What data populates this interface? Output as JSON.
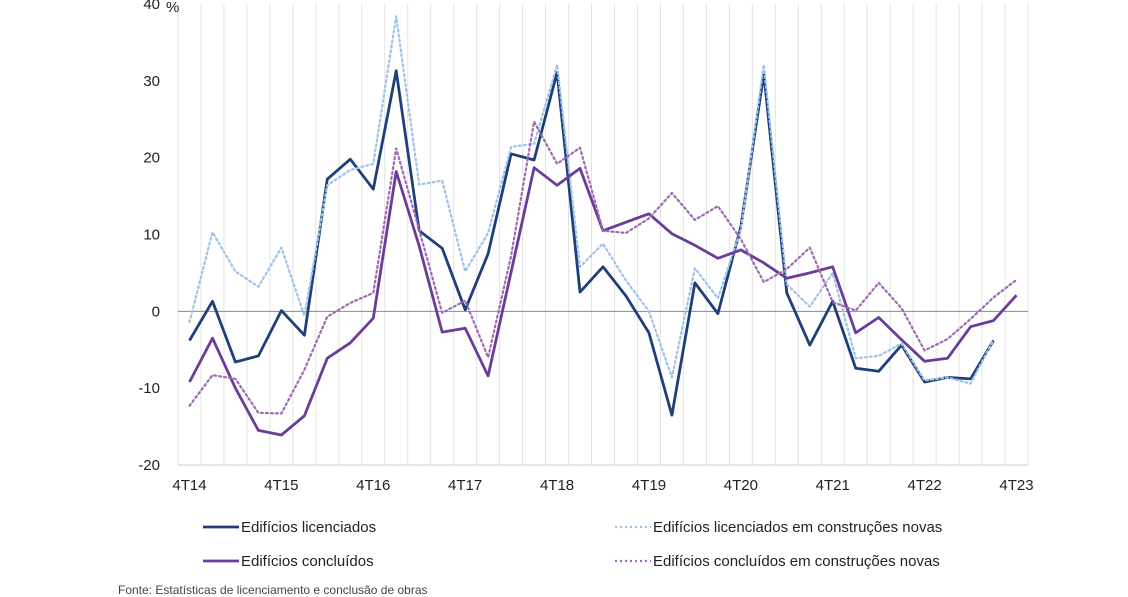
{
  "chart_data": {
    "type": "line",
    "ylabel": "%",
    "ylim": [
      -20,
      40
    ],
    "yticks": [
      40,
      30,
      20,
      10,
      0,
      -10,
      -20
    ],
    "xtick_labels": [
      "4T14",
      "4T15",
      "4T16",
      "4T17",
      "4T18",
      "4T19",
      "4T20",
      "4T21",
      "4T22",
      "4T23"
    ],
    "grid": "vertical",
    "legend_position": "bottom",
    "x": [
      "4T14",
      "1T15",
      "2T15",
      "3T15",
      "4T15",
      "1T16",
      "2T16",
      "3T16",
      "4T16",
      "1T17",
      "2T17",
      "3T17",
      "4T17",
      "1T18",
      "2T18",
      "3T18",
      "4T18",
      "1T19",
      "2T19",
      "3T19",
      "4T19",
      "1T20",
      "2T20",
      "3T20",
      "4T20",
      "1T21",
      "2T21",
      "3T21",
      "4T21",
      "1T22",
      "2T22",
      "3T22",
      "4T22",
      "1T23",
      "2T23",
      "3T23",
      "4T23"
    ],
    "series": [
      {
        "name": "Edifícios licenciados",
        "color": "#1f3f7a",
        "style": "solid",
        "values": [
          -3.8,
          1.3,
          -6.6,
          -5.8,
          0.1,
          -3.1,
          17.2,
          19.8,
          15.9,
          31.3,
          10.5,
          8.2,
          0.2,
          7.5,
          20.5,
          19.7,
          31.1,
          2.5,
          5.8,
          2.0,
          -2.8,
          -13.5,
          3.7,
          -0.3,
          11.0,
          30.9,
          2.4,
          -4.4,
          1.3,
          -7.4,
          -7.8,
          -4.4,
          -9.2,
          -8.6,
          -8.8,
          -3.8,
          null
        ]
      },
      {
        "name": "Edifícios licenciados em construções novas",
        "color": "#9fc3e7",
        "style": "dotted",
        "values": [
          -1.4,
          10.3,
          5.2,
          3.2,
          8.3,
          -0.6,
          16.4,
          18.4,
          19.2,
          38.4,
          16.5,
          17.0,
          5.2,
          10.2,
          21.4,
          21.8,
          32.1,
          5.8,
          8.8,
          4.0,
          0.0,
          -8.6,
          5.6,
          1.7,
          10.6,
          32.1,
          3.5,
          0.6,
          5.0,
          -6.1,
          -5.8,
          -4.2,
          -9.0,
          -8.6,
          -9.4,
          -3.7,
          null
        ]
      },
      {
        "name": "Edifícios concluídos",
        "color": "#6a3d9a",
        "style": "solid",
        "values": [
          -9.2,
          -3.5,
          -10.0,
          -15.5,
          -16.1,
          -13.6,
          -6.1,
          -4.1,
          -0.9,
          18.2,
          8.5,
          -2.7,
          -2.2,
          -8.4,
          5.1,
          18.7,
          16.4,
          18.6,
          10.5,
          11.6,
          12.7,
          10.1,
          8.6,
          6.9,
          8.0,
          6.3,
          4.3,
          5.0,
          5.8,
          -2.8,
          -0.8,
          -3.7,
          -6.5,
          -6.1,
          -2.0,
          -1.2,
          2.1
        ]
      },
      {
        "name": "Edifícios concluídos em construções novas",
        "color": "#a06ab4",
        "style": "dotted",
        "values": [
          -12.3,
          -8.3,
          -8.8,
          -13.2,
          -13.3,
          -7.6,
          -0.7,
          1.1,
          2.4,
          21.2,
          10.6,
          -0.2,
          1.4,
          -6.0,
          7.2,
          24.7,
          19.2,
          21.3,
          10.5,
          10.2,
          12.1,
          15.4,
          11.9,
          13.7,
          9.4,
          3.8,
          5.5,
          8.3,
          1.2,
          0.1,
          3.7,
          0.4,
          -5.1,
          -3.6,
          -1.0,
          1.8,
          4.1
        ]
      }
    ]
  },
  "source_note": "Fonte: Estatísticas de licenciamento e conclusão de obras"
}
